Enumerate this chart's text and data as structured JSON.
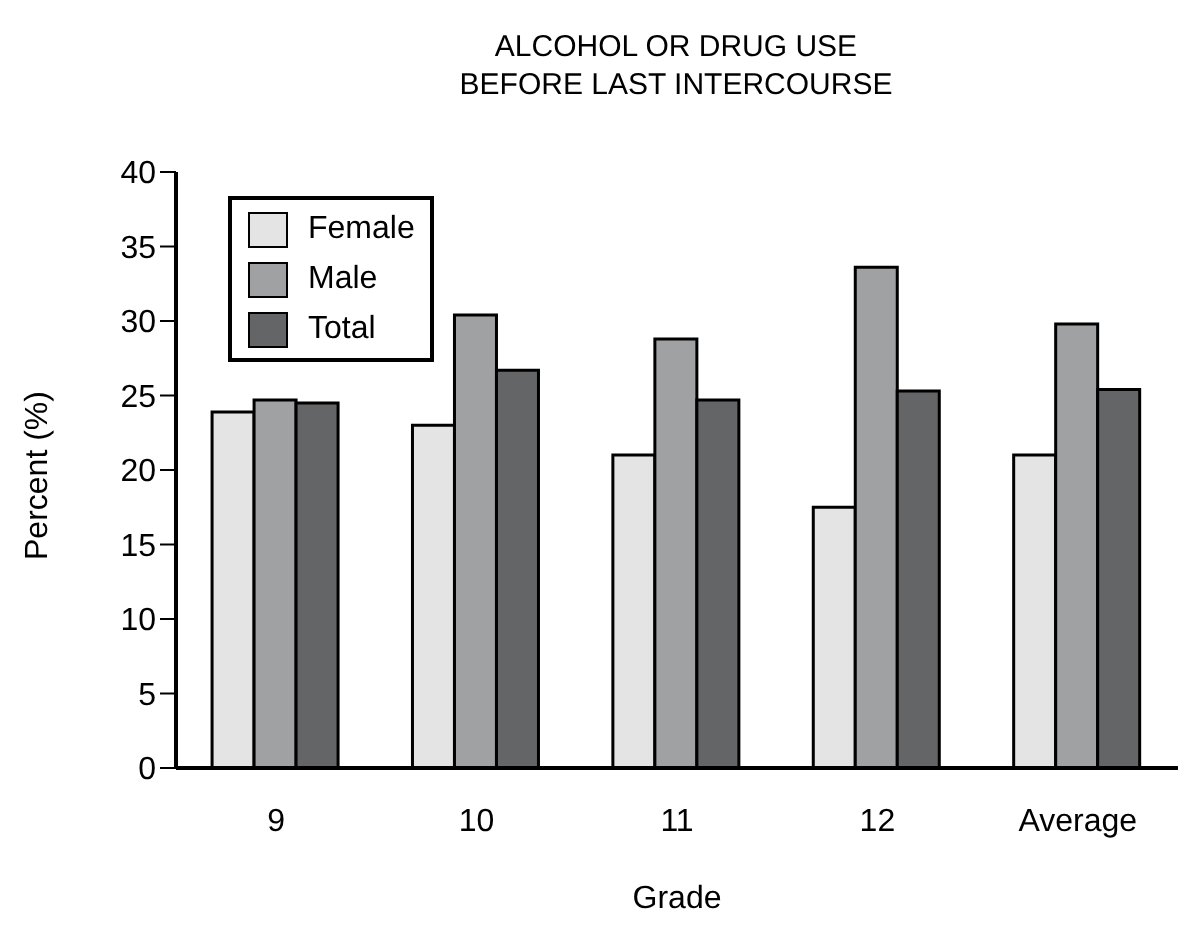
{
  "chart_data": {
    "type": "bar",
    "title": "ALCOHOL OR DRUG USE\nBEFORE LAST INTERCOURSE",
    "xlabel": "Grade",
    "ylabel": "Percent (%)",
    "categories": [
      "9",
      "10",
      "11",
      "12",
      "Average"
    ],
    "series": [
      {
        "name": "Female",
        "color": "#e3e4e3",
        "values": [
          23.9,
          23.0,
          21.0,
          17.5,
          21.0
        ]
      },
      {
        "name": "Male",
        "color": "#a0a1a3",
        "values": [
          24.7,
          30.4,
          28.8,
          33.6,
          29.8
        ]
      },
      {
        "name": "Total",
        "color": "#646567",
        "values": [
          24.5,
          26.7,
          24.7,
          25.3,
          25.4
        ]
      }
    ],
    "ylim": [
      0,
      40
    ],
    "yticks": [
      0,
      5,
      10,
      15,
      20,
      25,
      30,
      35,
      40
    ],
    "grid": false,
    "legend": "top left"
  }
}
